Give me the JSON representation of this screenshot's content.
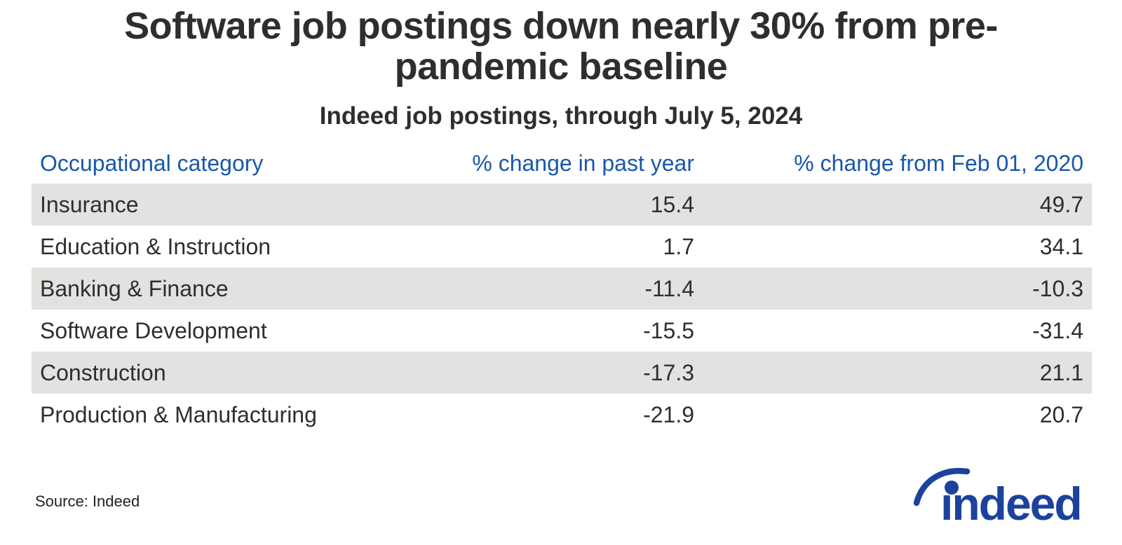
{
  "page": {
    "title_line1": "Software job postings down nearly 30% from pre-",
    "title_line2": "pandemic baseline",
    "subtitle": "Indeed job postings, through July 5, 2024",
    "source": "Source: Indeed",
    "logo_text": "indeed"
  },
  "colors": {
    "header_blue": "#1a57a8",
    "logo_blue": "#1c429e",
    "row_stripe": "#e2e2e0",
    "text_dark": "#2e2e2e"
  },
  "chart_data": {
    "type": "table",
    "title": "Software job postings down nearly 30% from pre-pandemic baseline",
    "subtitle": "Indeed job postings, through July 5, 2024",
    "columns": [
      "Occupational category",
      "% change in past year",
      "% change from Feb 01, 2020"
    ],
    "rows": [
      {
        "category": "Insurance",
        "change_past_year": 15.4,
        "change_from_feb_2020": 49.7
      },
      {
        "category": "Education & Instruction",
        "change_past_year": 1.7,
        "change_from_feb_2020": 34.1
      },
      {
        "category": "Banking & Finance",
        "change_past_year": -11.4,
        "change_from_feb_2020": -10.3
      },
      {
        "category": "Software Development",
        "change_past_year": -15.5,
        "change_from_feb_2020": -31.4
      },
      {
        "category": "Construction",
        "change_past_year": -17.3,
        "change_from_feb_2020": 21.1
      },
      {
        "category": "Production & Manufacturing",
        "change_past_year": -21.9,
        "change_from_feb_2020": 20.7
      }
    ],
    "layout": {
      "stripe_pattern": "odd-rows-gray-starting-first",
      "value_decimals": 1,
      "value_alignment": "right",
      "header_alignment": {
        "category": "left",
        "values": "right"
      }
    },
    "source": "Source: Indeed"
  }
}
